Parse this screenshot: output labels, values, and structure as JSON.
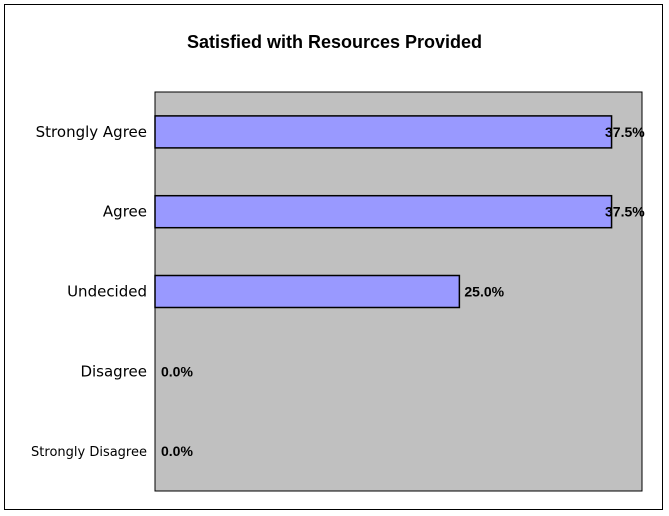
{
  "chart_data": {
    "type": "bar",
    "orientation": "horizontal",
    "title": "Satisfied with Resources Provided",
    "categories": [
      "Strongly Agree",
      "Agree",
      "Undecided",
      "Disagree",
      "Strongly Disagree"
    ],
    "values": [
      37.5,
      37.5,
      25.0,
      0.0,
      0.0
    ],
    "data_labels": [
      "37.5%",
      "37.5%",
      "25.0%",
      "0.0%",
      "0.0%"
    ],
    "xlim": [
      0,
      40
    ],
    "xlabel": "",
    "ylabel": "",
    "grid": false,
    "legend": "none",
    "colors": {
      "bar_fill": "#9999ff",
      "bar_stroke": "#000000",
      "plot_background": "#c0c0c0"
    }
  }
}
